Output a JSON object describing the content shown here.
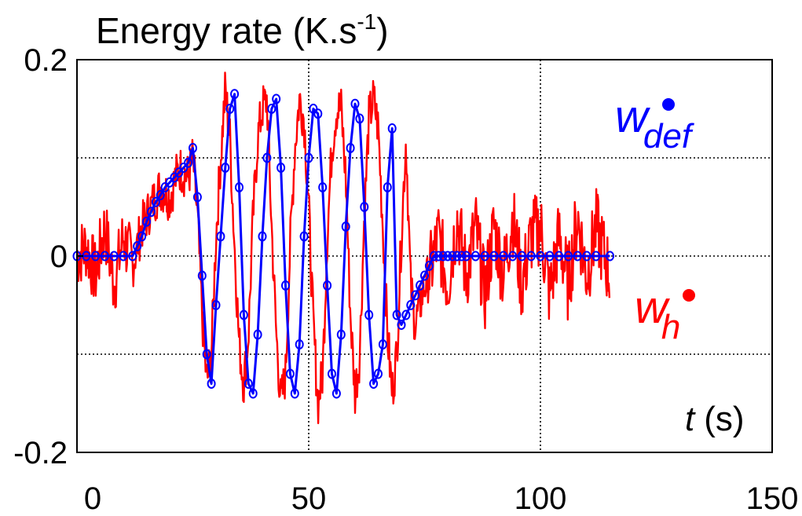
{
  "chart_data": {
    "type": "line",
    "title": "Energy rate (K.s",
    "title_sup": "-1",
    "title_close": ")",
    "xlabel_var": "t",
    "xlabel_unit": "(s)",
    "xlim": [
      0,
      150
    ],
    "ylim": [
      -0.2,
      0.2
    ],
    "x_ticks": [
      0,
      50,
      100,
      150
    ],
    "y_ticks": [
      0.2,
      0,
      -0.2
    ],
    "x_tick_labels": [
      "0",
      "50",
      "100",
      "150"
    ],
    "y_tick_labels": [
      "0.2",
      "0",
      "-0.2"
    ],
    "grid": "dotted",
    "legend_position": "right",
    "series": [
      {
        "name": "w_h",
        "label_base": "w",
        "label_sub": "h",
        "color": "#ff0000",
        "style": "noisy-line",
        "x": [
          0,
          2,
          4,
          6,
          8,
          10,
          12,
          14,
          16,
          18,
          20,
          22,
          24,
          25,
          26,
          27,
          28,
          29,
          30,
          31,
          32,
          33,
          34,
          35,
          36,
          37,
          38,
          39,
          40,
          41,
          42,
          43,
          44,
          45,
          46,
          47,
          48,
          49,
          50,
          51,
          52,
          53,
          54,
          55,
          56,
          57,
          58,
          59,
          60,
          61,
          62,
          63,
          64,
          65,
          66,
          67,
          68,
          69,
          70,
          71,
          72,
          73,
          74,
          75,
          76,
          78,
          80,
          82,
          84,
          86,
          88,
          90,
          92,
          94,
          96,
          98,
          100,
          102,
          104,
          106,
          108,
          110,
          112,
          115
        ],
        "y": [
          0,
          0.01,
          -0.02,
          0.03,
          -0.03,
          0.02,
          -0.01,
          0.03,
          0.05,
          0.07,
          0.06,
          0.09,
          0.08,
          0.1,
          0.04,
          -0.06,
          -0.13,
          -0.1,
          0.02,
          0.1,
          0.17,
          0.12,
          0.01,
          -0.09,
          -0.13,
          -0.08,
          0.04,
          0.12,
          0.15,
          0.16,
          0.03,
          -0.08,
          -0.15,
          -0.12,
          0.01,
          0.11,
          0.16,
          0.14,
          0.05,
          -0.07,
          -0.15,
          -0.12,
          0.02,
          0.11,
          0.15,
          0.15,
          0.08,
          -0.06,
          -0.14,
          -0.1,
          0.04,
          0.14,
          0.16,
          0.13,
          0.03,
          -0.08,
          -0.14,
          -0.1,
          0.02,
          0.12,
          -0.03,
          -0.07,
          -0.05,
          -0.03,
          -0.02,
          0.02,
          -0.03,
          0.04,
          -0.02,
          0.03,
          -0.04,
          0.03,
          -0.02,
          0.04,
          -0.03,
          0.02,
          0.03,
          -0.04,
          0.02,
          -0.03,
          0.04,
          -0.02,
          0.03,
          -0.02
        ]
      },
      {
        "name": "w_def",
        "label_base": "w",
        "label_sub": "def",
        "color": "#0000ff",
        "style": "line-with-circle-markers",
        "x": [
          0,
          2,
          4,
          6,
          8,
          10,
          12,
          13,
          14,
          15,
          16,
          17,
          18,
          19,
          20,
          21,
          22,
          23,
          24,
          25,
          26,
          27,
          28,
          29,
          30,
          31,
          32,
          33,
          34,
          35,
          36,
          37,
          38,
          39,
          40,
          41,
          42,
          43,
          44,
          45,
          46,
          47,
          48,
          49,
          50,
          51,
          52,
          53,
          54,
          55,
          56,
          57,
          58,
          59,
          60,
          61,
          62,
          63,
          64,
          65,
          66,
          67,
          68,
          69,
          70,
          71,
          72,
          73,
          74,
          75,
          76,
          77,
          78,
          79,
          80,
          81,
          82,
          83,
          84,
          86,
          88,
          90,
          92,
          94,
          96,
          98,
          100,
          102,
          104,
          106,
          108,
          110,
          112,
          115
        ],
        "y": [
          0,
          0,
          0,
          0,
          0,
          0,
          0,
          0.01,
          0.02,
          0.035,
          0.045,
          0.055,
          0.062,
          0.07,
          0.075,
          0.08,
          0.085,
          0.09,
          0.095,
          0.11,
          0.06,
          -0.02,
          -0.1,
          -0.13,
          -0.05,
          0.02,
          0.09,
          0.15,
          0.165,
          0.07,
          -0.06,
          -0.13,
          -0.14,
          -0.08,
          0.02,
          0.1,
          0.15,
          0.16,
          0.09,
          -0.03,
          -0.12,
          -0.14,
          -0.09,
          0.02,
          0.1,
          0.15,
          0.145,
          0.07,
          -0.03,
          -0.12,
          -0.14,
          -0.08,
          0.03,
          0.11,
          0.155,
          0.14,
          0.05,
          -0.06,
          -0.13,
          -0.12,
          -0.09,
          0.07,
          0.13,
          -0.06,
          -0.07,
          -0.06,
          -0.05,
          -0.04,
          -0.03,
          -0.02,
          -0.01,
          0,
          0,
          0,
          0,
          0,
          0,
          0,
          0,
          0,
          0,
          0,
          0,
          0,
          0,
          0,
          0,
          0,
          0,
          0,
          0,
          0,
          0,
          0
        ]
      }
    ]
  }
}
